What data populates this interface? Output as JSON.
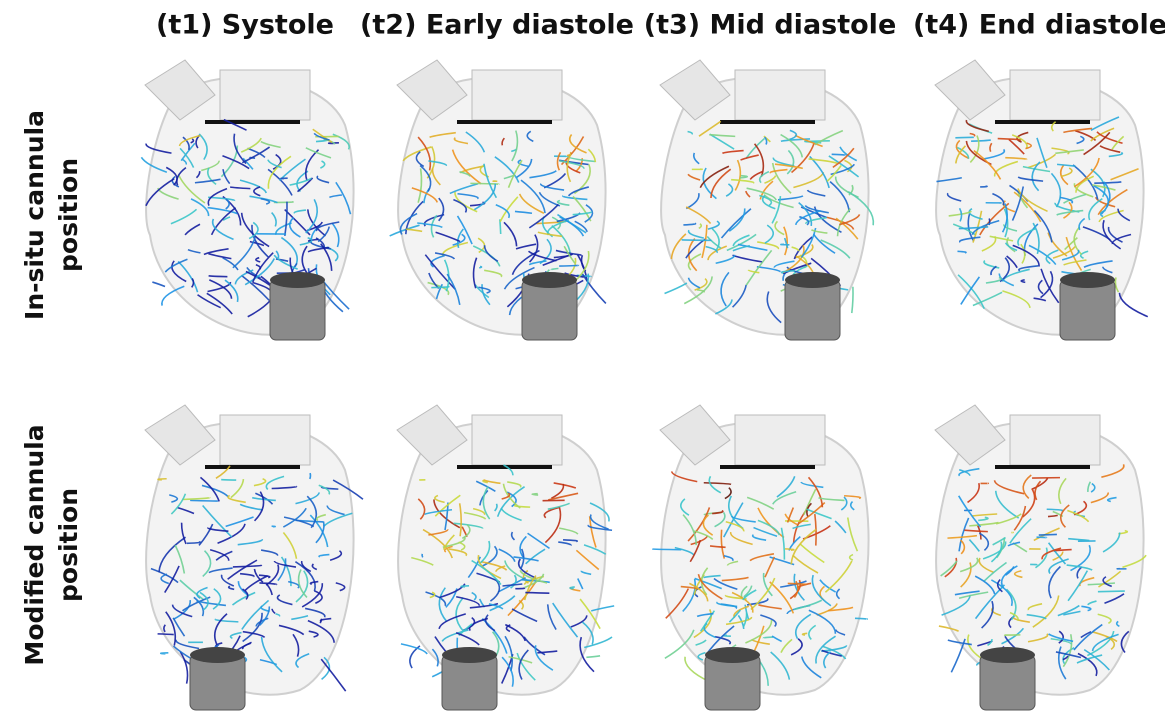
{
  "columns": [
    "(t1) Systole",
    "(t2) Early diastole",
    "(t3) Mid diastole",
    "(t4) End diastole"
  ],
  "rows": [
    {
      "label_lines": [
        "In-situ cannula",
        "position"
      ]
    },
    {
      "label_lines": [
        "Modified cannula",
        "position"
      ]
    }
  ]
}
